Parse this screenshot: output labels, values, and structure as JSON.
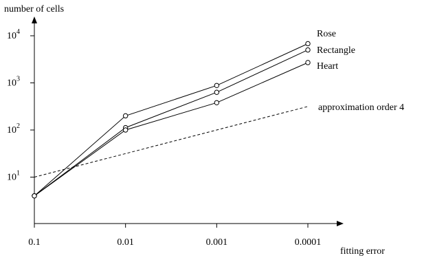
{
  "chart_data": {
    "type": "line",
    "title": "",
    "xlabel": "fitting error",
    "ylabel": "number of cells",
    "y_scale": "log",
    "x_scale": "log",
    "x_reversed": true,
    "x": [
      0.1,
      0.01,
      0.001,
      0.0001
    ],
    "x_tick_labels": [
      "0.1",
      "0.01",
      "0.001",
      "0.0001"
    ],
    "y_ticks": [
      {
        "value": 10,
        "base": "10",
        "exp": "1"
      },
      {
        "value": 100,
        "base": "10",
        "exp": "2"
      },
      {
        "value": 1000,
        "base": "10",
        "exp": "3"
      },
      {
        "value": 10000,
        "base": "10",
        "exp": "4"
      }
    ],
    "ylim": [
      1.5,
      14000
    ],
    "series": [
      {
        "name": "Rose",
        "values": [
          4,
          200,
          880,
          6800
        ],
        "style": "solid",
        "marker": "circle"
      },
      {
        "name": "Rectangle",
        "values": [
          4,
          112,
          630,
          5000
        ],
        "style": "solid",
        "marker": "circle"
      },
      {
        "name": "Heart",
        "values": [
          4,
          100,
          380,
          2700
        ],
        "style": "solid",
        "marker": "circle"
      },
      {
        "name": "approximation order 4",
        "values": [
          10,
          31.6,
          100,
          316
        ],
        "style": "dashed",
        "marker": "none"
      }
    ],
    "grid": false,
    "legend": "labels at line ends"
  }
}
